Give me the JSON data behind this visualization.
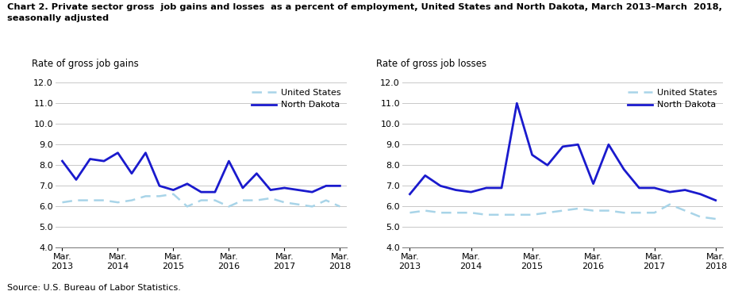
{
  "title_line1": "Chart 2. Private sector gross  job gains and losses  as a percent of employment, United States and North Dakota, March 2013–March  2018,",
  "title_line2": "seasonally adjusted",
  "source": "Source: U.S. Bureau of Labor Statistics.",
  "gains_ylabel": "Rate of gross job gains",
  "losses_ylabel": "Rate of gross job losses",
  "x_labels": [
    "Mar.\n2013",
    "Mar.\n2014",
    "Mar.\n2015",
    "Mar.\n2016",
    "Mar.\n2017",
    "Mar.\n2018"
  ],
  "x_positions": [
    0,
    4,
    8,
    12,
    16,
    20
  ],
  "n_points": 21,
  "gains_us": [
    6.2,
    6.3,
    6.3,
    6.3,
    6.2,
    6.3,
    6.5,
    6.5,
    6.6,
    6.0,
    6.3,
    6.3,
    6.0,
    6.3,
    6.3,
    6.4,
    6.2,
    6.1,
    6.0,
    6.3,
    6.0
  ],
  "gains_nd": [
    8.2,
    7.3,
    8.3,
    8.2,
    8.6,
    7.6,
    8.6,
    7.0,
    6.8,
    7.1,
    6.7,
    6.7,
    8.2,
    6.9,
    7.6,
    6.8,
    6.9,
    6.8,
    6.7,
    7.0,
    7.0
  ],
  "losses_us": [
    5.7,
    5.8,
    5.7,
    5.7,
    5.7,
    5.6,
    5.6,
    5.6,
    5.6,
    5.7,
    5.8,
    5.9,
    5.8,
    5.8,
    5.7,
    5.7,
    5.7,
    6.1,
    5.8,
    5.5,
    5.4
  ],
  "losses_nd": [
    6.6,
    7.5,
    7.0,
    6.8,
    6.7,
    6.9,
    6.9,
    11.0,
    8.5,
    8.0,
    8.9,
    9.0,
    7.1,
    9.0,
    7.8,
    6.9,
    6.9,
    6.7,
    6.8,
    6.6,
    6.3
  ],
  "us_color": "#a8d4e8",
  "nd_color": "#1a1acd",
  "tick_label_color": "#808080",
  "grid_color": "#c8c8c8",
  "ylim": [
    4.0,
    12.0
  ],
  "yticks": [
    4.0,
    5.0,
    6.0,
    7.0,
    8.0,
    9.0,
    10.0,
    11.0,
    12.0
  ]
}
